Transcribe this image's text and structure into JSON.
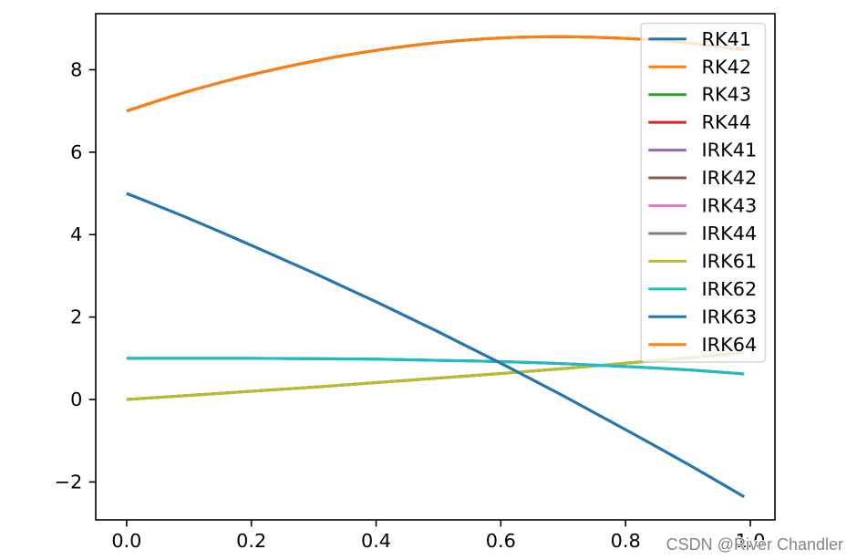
{
  "chart_data": {
    "type": "line",
    "x": [
      0,
      0.1,
      0.2,
      0.3,
      0.4,
      0.5,
      0.6,
      0.7,
      0.8,
      0.9,
      0.99
    ],
    "xlim": [
      -0.0495,
      1.0395
    ],
    "ylim": [
      -2.92,
      9.36
    ],
    "xticks": [
      0.0,
      0.2,
      0.4,
      0.6,
      0.8,
      1.0
    ],
    "xtick_labels": [
      "0.0",
      "0.2",
      "0.4",
      "0.6",
      "0.8",
      "1.0"
    ],
    "yticks": [
      -2,
      0,
      2,
      4,
      6,
      8
    ],
    "ytick_labels": [
      "−2",
      "0",
      "2",
      "4",
      "6",
      "8"
    ],
    "grid": false,
    "legend_position": "top-right",
    "series": [
      {
        "name": "RK41",
        "color": "#1f77b4",
        "values": [
          0,
          0.1,
          0.2,
          0.3,
          0.41,
          0.52,
          0.63,
          0.75,
          0.88,
          1.01,
          1.14
        ]
      },
      {
        "name": "RK42",
        "color": "#ff7f0e",
        "values": [
          1.0,
          1.0,
          1.0,
          0.99,
          0.98,
          0.95,
          0.92,
          0.87,
          0.8,
          0.72,
          0.62
        ]
      },
      {
        "name": "RK43",
        "color": "#2ca02c",
        "values": [
          5.0,
          4.39,
          3.74,
          3.07,
          2.37,
          1.64,
          0.88,
          0.09,
          -0.73,
          -1.57,
          -2.36
        ]
      },
      {
        "name": "RK44",
        "color": "#d62728",
        "values": [
          7.0,
          7.48,
          7.88,
          8.21,
          8.47,
          8.66,
          8.77,
          8.8,
          8.76,
          8.65,
          8.49
        ]
      },
      {
        "name": "IRK41",
        "color": "#9467bd",
        "values": [
          0,
          0.1,
          0.2,
          0.3,
          0.41,
          0.52,
          0.63,
          0.75,
          0.88,
          1.01,
          1.14
        ]
      },
      {
        "name": "IRK42",
        "color": "#8c564b",
        "values": [
          1.0,
          1.0,
          1.0,
          0.99,
          0.98,
          0.95,
          0.92,
          0.87,
          0.8,
          0.72,
          0.62
        ]
      },
      {
        "name": "IRK43",
        "color": "#e377c2",
        "values": [
          5.0,
          4.39,
          3.74,
          3.07,
          2.37,
          1.64,
          0.88,
          0.09,
          -0.73,
          -1.57,
          -2.36
        ]
      },
      {
        "name": "IRK44",
        "color": "#7f7f7f",
        "values": [
          7.0,
          7.48,
          7.88,
          8.21,
          8.47,
          8.66,
          8.77,
          8.8,
          8.76,
          8.65,
          8.49
        ]
      },
      {
        "name": "IRK61",
        "color": "#bcbd22",
        "values": [
          0,
          0.1,
          0.2,
          0.3,
          0.41,
          0.52,
          0.63,
          0.75,
          0.88,
          1.01,
          1.14
        ]
      },
      {
        "name": "IRK62",
        "color": "#17becf",
        "values": [
          1.0,
          1.0,
          1.0,
          0.99,
          0.98,
          0.95,
          0.92,
          0.87,
          0.8,
          0.72,
          0.62
        ]
      },
      {
        "name": "IRK63",
        "color": "#1f77b4",
        "values": [
          5.0,
          4.39,
          3.74,
          3.07,
          2.37,
          1.64,
          0.88,
          0.09,
          -0.73,
          -1.57,
          -2.36
        ]
      },
      {
        "name": "IRK64",
        "color": "#ff7f0e",
        "values": [
          7.0,
          7.48,
          7.88,
          8.21,
          8.47,
          8.66,
          8.77,
          8.8,
          8.76,
          8.65,
          8.49
        ]
      }
    ]
  },
  "watermark": "CSDN @River Chandler"
}
